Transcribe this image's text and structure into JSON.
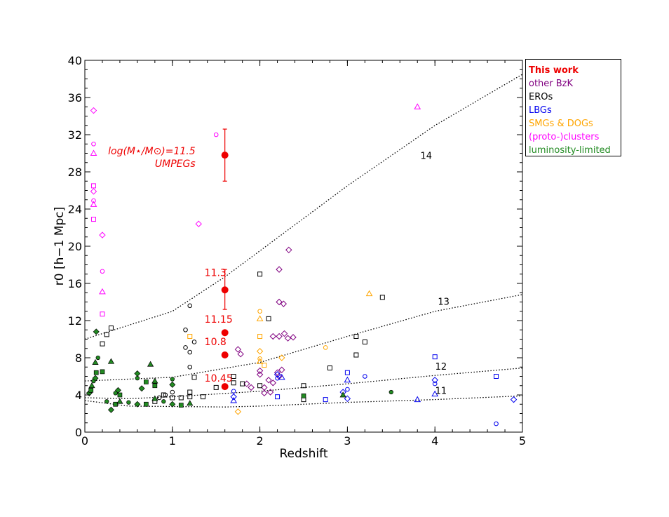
{
  "chart_data": {
    "type": "scatter",
    "xlabel": "Redshift",
    "ylabel": "r0 [h−1 Mpc]",
    "xlim": [
      0,
      5
    ],
    "ylim": [
      0,
      40
    ],
    "xticks": [
      "0",
      "1",
      "2",
      "3",
      "4",
      "5"
    ],
    "yticks": [
      "0",
      "4",
      "8",
      "12",
      "16",
      "20",
      "24",
      "28",
      "32",
      "36",
      "40"
    ],
    "legend": {
      "placement": "right-outside",
      "entries": [
        {
          "label": "This work",
          "color": "#ee0000"
        },
        {
          "label": "other BzK",
          "color": "#800080"
        },
        {
          "label": "EROs",
          "color": "#000000"
        },
        {
          "label": "LBGs",
          "color": "#0000ee"
        },
        {
          "label": "SMGs & DOGs",
          "color": "#ffa500"
        },
        {
          "label": "(proto-)clusters",
          "color": "#ff00ff"
        },
        {
          "label": "luminosity-limited",
          "color": "#228b22"
        }
      ]
    },
    "halo_mass_curves": [
      {
        "label": "14",
        "points": [
          [
            0,
            10
          ],
          [
            1,
            13
          ],
          [
            1.6,
            16.7
          ],
          [
            2,
            19.5
          ],
          [
            3,
            26.5
          ],
          [
            4,
            33
          ],
          [
            5,
            38.5
          ]
        ]
      },
      {
        "label": "13",
        "points": [
          [
            0,
            5.5
          ],
          [
            1,
            5.9
          ],
          [
            2,
            7.5
          ],
          [
            3,
            10.3
          ],
          [
            4,
            13
          ],
          [
            5,
            14.8
          ]
        ]
      },
      {
        "label": "12",
        "points": [
          [
            0,
            3.7
          ],
          [
            0.5,
            3.6
          ],
          [
            1,
            3.8
          ],
          [
            2,
            4.4
          ],
          [
            3,
            5.2
          ],
          [
            4,
            6.1
          ],
          [
            5,
            6.9
          ]
        ]
      },
      {
        "label": "11",
        "points": [
          [
            0,
            3.4
          ],
          [
            0.5,
            2.8
          ],
          [
            1.6,
            2.7
          ],
          [
            2,
            2.8
          ],
          [
            3,
            3.2
          ],
          [
            4,
            3.5
          ],
          [
            5,
            3.9
          ]
        ]
      }
    ],
    "this_work": [
      {
        "label": "log(M⋆/M⊙)=11.5",
        "sublabel": "UMPEGs",
        "z": 1.6,
        "r0": 29.8,
        "err_low": 2.8,
        "err_high": 2.8
      },
      {
        "label": "11.3",
        "z": 1.6,
        "r0": 15.3,
        "err_low": 2.1,
        "err_high": 2.2
      },
      {
        "label": "11.15",
        "z": 1.6,
        "r0": 10.7,
        "err_low": 0.3,
        "err_high": 0.3
      },
      {
        "label": "10.8",
        "z": 1.6,
        "r0": 8.3,
        "err_low": 0.5,
        "err_high": 0.5
      },
      {
        "label": "10.45",
        "z": 1.6,
        "r0": 4.9,
        "err_low": 0.2,
        "err_high": 0.2
      }
    ],
    "literature": {
      "other_bzk": [
        [
          1.75,
          8.9
        ],
        [
          1.78,
          8.4
        ],
        [
          1.85,
          5.2
        ],
        [
          2.0,
          6.6
        ],
        [
          2.0,
          6.2
        ],
        [
          2.05,
          4.8
        ],
        [
          2.1,
          5.6
        ],
        [
          2.15,
          5.3
        ],
        [
          2.2,
          6.4
        ],
        [
          2.22,
          6.0
        ],
        [
          2.25,
          6.7
        ],
        [
          2.15,
          10.3
        ],
        [
          2.22,
          10.3
        ],
        [
          2.28,
          10.6
        ],
        [
          2.32,
          10.1
        ],
        [
          2.38,
          10.2
        ],
        [
          2.22,
          14.0
        ],
        [
          2.27,
          13.8
        ],
        [
          2.22,
          17.5
        ],
        [
          2.33,
          19.6
        ],
        [
          1.9,
          4.8
        ],
        [
          2.05,
          4.2
        ],
        [
          2.12,
          4.3
        ]
      ],
      "eros": [
        [
          0.2,
          9.5
        ],
        [
          0.25,
          10.5
        ],
        [
          0.3,
          11.2
        ],
        [
          0.8,
          3.3
        ],
        [
          0.9,
          4.0
        ],
        [
          1.0,
          3.7
        ],
        [
          1.1,
          3.7
        ],
        [
          1.2,
          4.3
        ],
        [
          1.2,
          3.8
        ],
        [
          1.25,
          5.9
        ],
        [
          1.35,
          3.8
        ],
        [
          1.5,
          4.8
        ],
        [
          1.7,
          6.0
        ],
        [
          1.7,
          5.3
        ],
        [
          1.8,
          5.2
        ],
        [
          2.0,
          5.0
        ],
        [
          2.0,
          17.0
        ],
        [
          2.1,
          12.2
        ],
        [
          2.5,
          5.0
        ],
        [
          2.5,
          3.5
        ],
        [
          2.8,
          6.9
        ],
        [
          3.1,
          8.3
        ],
        [
          3.1,
          10.3
        ],
        [
          3.2,
          9.7
        ],
        [
          3.4,
          14.5
        ]
      ],
      "eros_circles": [
        [
          1.15,
          11.0
        ],
        [
          1.15,
          9.1
        ],
        [
          1.2,
          13.6
        ],
        [
          1.2,
          8.6
        ],
        [
          1.2,
          7.0
        ],
        [
          1.25,
          9.7
        ],
        [
          0.92,
          4.0
        ],
        [
          1.0,
          4.3
        ],
        [
          0.85,
          3.7
        ]
      ],
      "lbgs": [
        [
          1.7,
          3.8
        ],
        [
          1.7,
          4.4
        ],
        [
          1.7,
          3.4
        ],
        [
          2.2,
          3.8
        ],
        [
          2.2,
          6.2
        ],
        [
          2.2,
          5.8
        ],
        [
          2.25,
          5.9
        ],
        [
          2.75,
          3.5
        ],
        [
          2.95,
          4.3
        ],
        [
          3.0,
          4.6
        ],
        [
          3.0,
          5.6
        ],
        [
          3.0,
          6.4
        ],
        [
          3.0,
          3.6
        ],
        [
          3.2,
          6.0
        ],
        [
          3.8,
          3.5
        ],
        [
          4.0,
          8.1
        ],
        [
          4.0,
          5.6
        ],
        [
          4.0,
          5.2
        ],
        [
          4.0,
          4.1
        ],
        [
          4.7,
          6.0
        ],
        [
          4.9,
          3.5
        ],
        [
          4.7,
          0.9
        ]
      ],
      "smgs_dogs": [
        [
          1.75,
          2.2
        ],
        [
          2.0,
          13.0
        ],
        [
          2.0,
          12.2
        ],
        [
          2.0,
          10.3
        ],
        [
          2.0,
          8.7
        ],
        [
          2.0,
          7.9
        ],
        [
          2.0,
          7.6
        ],
        [
          2.05,
          7.2
        ],
        [
          2.25,
          8.0
        ],
        [
          2.75,
          9.1
        ],
        [
          3.25,
          14.9
        ],
        [
          1.2,
          10.3
        ]
      ],
      "protoclusters": [
        [
          0.1,
          34.6
        ],
        [
          0.1,
          31.0
        ],
        [
          0.1,
          30.0
        ],
        [
          0.1,
          26.5
        ],
        [
          0.1,
          25.9
        ],
        [
          0.1,
          24.9
        ],
        [
          0.1,
          24.5
        ],
        [
          0.1,
          22.9
        ],
        [
          0.2,
          21.2
        ],
        [
          0.2,
          17.3
        ],
        [
          0.2,
          15.1
        ],
        [
          0.2,
          12.7
        ],
        [
          1.3,
          22.4
        ],
        [
          1.5,
          32.0
        ],
        [
          3.8,
          35.0
        ]
      ],
      "luminosity_limited": [
        [
          0.05,
          4.2
        ],
        [
          0.07,
          4.5
        ],
        [
          0.08,
          5.0
        ],
        [
          0.1,
          5.5
        ],
        [
          0.12,
          5.8
        ],
        [
          0.13,
          6.4
        ],
        [
          0.12,
          7.5
        ],
        [
          0.15,
          8.0
        ],
        [
          0.13,
          10.8
        ],
        [
          0.2,
          6.5
        ],
        [
          0.3,
          7.6
        ],
        [
          0.25,
          3.3
        ],
        [
          0.3,
          2.4
        ],
        [
          0.35,
          3.0
        ],
        [
          0.4,
          3.3
        ],
        [
          0.5,
          3.2
        ],
        [
          0.6,
          3.0
        ],
        [
          0.7,
          3.0
        ],
        [
          0.8,
          3.6
        ],
        [
          0.9,
          3.3
        ],
        [
          1.0,
          3.0
        ],
        [
          1.1,
          2.9
        ],
        [
          1.2,
          3.1
        ],
        [
          0.6,
          5.8
        ],
        [
          0.6,
          6.3
        ],
        [
          0.8,
          5.0
        ],
        [
          0.8,
          5.5
        ],
        [
          1.0,
          5.7
        ],
        [
          1.0,
          5.1
        ],
        [
          2.5,
          3.9
        ],
        [
          2.95,
          4.0
        ],
        [
          3.5,
          4.3
        ],
        [
          0.65,
          4.7
        ],
        [
          0.7,
          5.4
        ],
        [
          0.75,
          7.3
        ],
        [
          0.35,
          4.2
        ],
        [
          0.38,
          4.5
        ],
        [
          0.4,
          4.0
        ]
      ]
    }
  }
}
